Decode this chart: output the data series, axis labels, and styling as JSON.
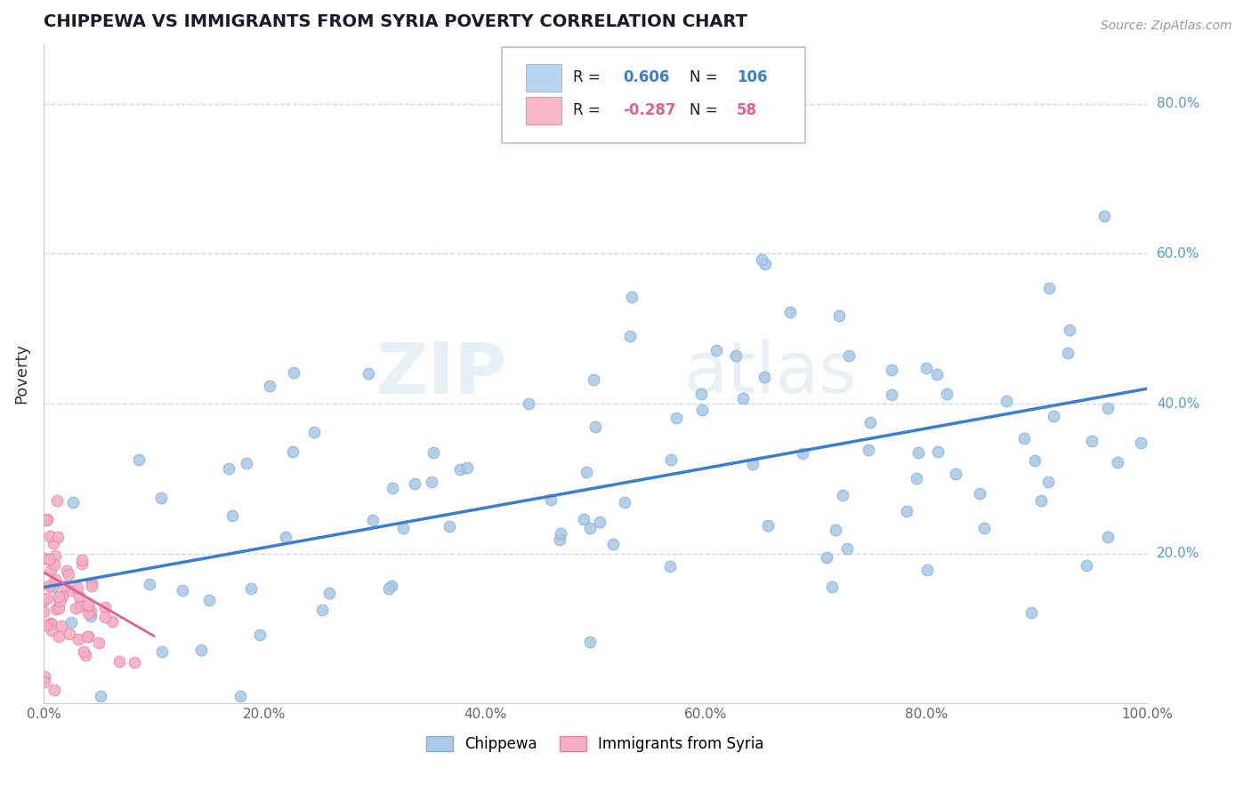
{
  "title": "CHIPPEWA VS IMMIGRANTS FROM SYRIA POVERTY CORRELATION CHART",
  "source": "Source: ZipAtlas.com",
  "ylabel": "Poverty",
  "xlim": [
    0.0,
    1.0
  ],
  "ylim": [
    0.0,
    0.88
  ],
  "xtick_vals": [
    0.0,
    0.2,
    0.4,
    0.6,
    0.8,
    1.0
  ],
  "xtick_labels": [
    "0.0%",
    "20.0%",
    "40.0%",
    "60.0%",
    "80.0%",
    "100.0%"
  ],
  "ytick_vals": [
    0.2,
    0.4,
    0.6,
    0.8
  ],
  "ytick_labels": [
    "20.0%",
    "40.0%",
    "60.0%",
    "80.0%"
  ],
  "chippewa_color": "#adc9e8",
  "syria_color": "#f5afc4",
  "chippewa_edge": "#7aafd4",
  "syria_edge": "#e87fa0",
  "trend_blue": "#3a7fcc",
  "trend_pink": "#e06090",
  "R_chippewa": 0.606,
  "N_chippewa": 106,
  "R_syria": -0.287,
  "N_syria": 58,
  "watermark_zip": "ZIP",
  "watermark_atlas": "atlas",
  "background_color": "#ffffff",
  "grid_color": "#c8d8ec",
  "title_color": "#1a1a2e",
  "axis_label_color": "#333333",
  "ytick_color": "#5599cc",
  "legend_box_blue": "#b8d4f0",
  "legend_box_pink": "#f9b8c8",
  "legend_text_color": "#1a1a2e",
  "legend_val_color_blue": "#3a7fcc",
  "legend_val_color_pink": "#e06090"
}
